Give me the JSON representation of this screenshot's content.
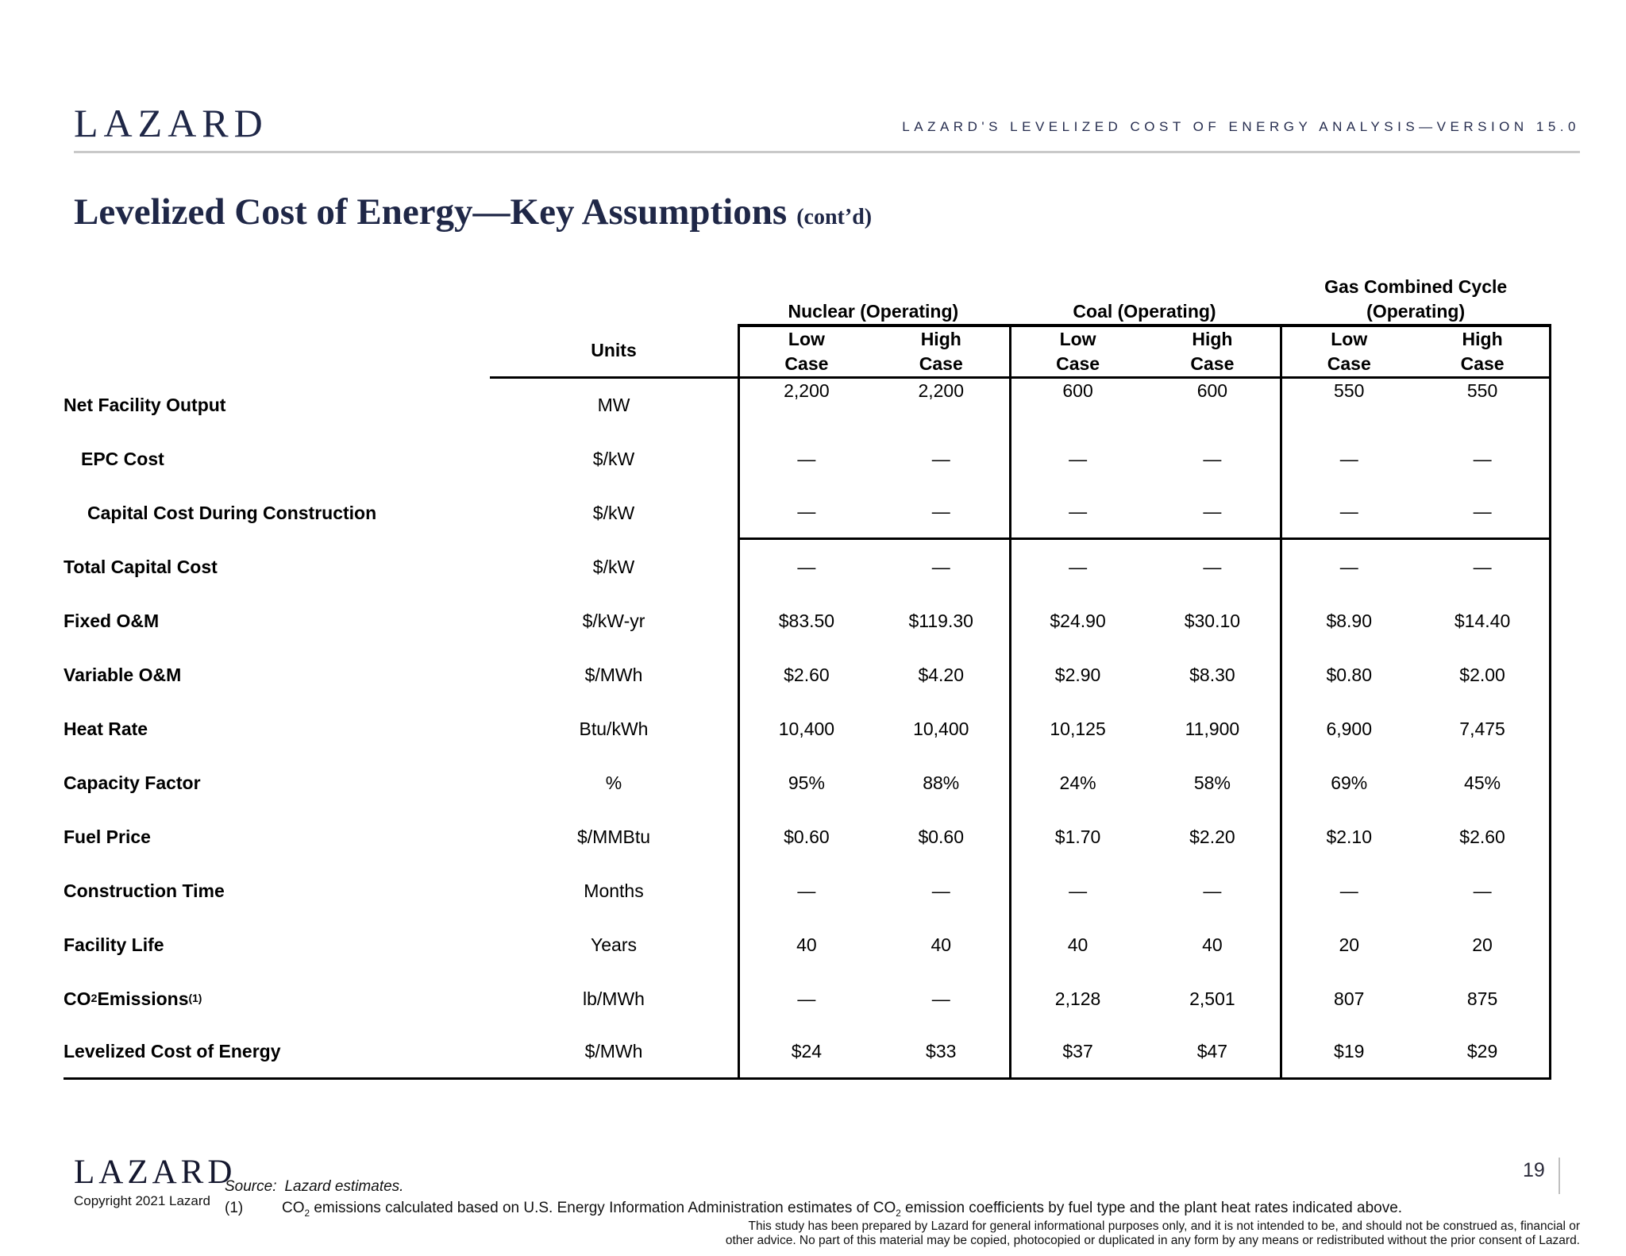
{
  "header": {
    "logo": "LAZARD",
    "right_title": "LAZARD'S LEVELIZED COST OF ENERGY ANALYSIS—VERSION 15.0"
  },
  "title": {
    "main": "Levelized Cost of Energy—Key Assumptions",
    "suffix": "(cont’d)"
  },
  "table": {
    "units_header": "Units",
    "groups": [
      {
        "label": "Nuclear (Operating)"
      },
      {
        "label": "Coal (Operating)"
      },
      {
        "label": "Gas Combined Cycle\n(Operating)"
      }
    ],
    "case_low": "Low\nCase",
    "case_high": "High\nCase",
    "rows": [
      {
        "label": "Net Facility Output",
        "indent": 0,
        "units": "MW",
        "values": [
          "2,200",
          "2,200",
          "600",
          "600",
          "550",
          "550"
        ]
      },
      {
        "label": "EPC Cost",
        "indent": 1,
        "units": "$/kW",
        "values": [
          "—",
          "—",
          "—",
          "—",
          "—",
          "—"
        ]
      },
      {
        "label": "Capital Cost During Construction",
        "indent": 2,
        "units": "$/kW",
        "values": [
          "—",
          "—",
          "—",
          "—",
          "—",
          "—"
        ]
      },
      {
        "label": "Total Capital Cost",
        "indent": 0,
        "units": "$/kW",
        "values": [
          "—",
          "—",
          "—",
          "—",
          "—",
          "—"
        ]
      },
      {
        "label": "Fixed O&M",
        "indent": 0,
        "units": "$/kW-yr",
        "values": [
          "$83.50",
          "$119.30",
          "$24.90",
          "$30.10",
          "$8.90",
          "$14.40"
        ]
      },
      {
        "label": "Variable O&M",
        "indent": 0,
        "units": "$/MWh",
        "values": [
          "$2.60",
          "$4.20",
          "$2.90",
          "$8.30",
          "$0.80",
          "$2.00"
        ]
      },
      {
        "label": "Heat Rate",
        "indent": 0,
        "units": "Btu/kWh",
        "values": [
          "10,400",
          "10,400",
          "10,125",
          "11,900",
          "6,900",
          "7,475"
        ]
      },
      {
        "label": "Capacity Factor",
        "indent": 0,
        "units": "%",
        "values": [
          "95%",
          "88%",
          "24%",
          "58%",
          "69%",
          "45%"
        ]
      },
      {
        "label": "Fuel Price",
        "indent": 0,
        "units": "$/MMBtu",
        "values": [
          "$0.60",
          "$0.60",
          "$1.70",
          "$2.20",
          "$2.10",
          "$2.60"
        ]
      },
      {
        "label": "Construction Time",
        "indent": 0,
        "units": "Months",
        "values": [
          "—",
          "—",
          "—",
          "—",
          "—",
          "—"
        ]
      },
      {
        "label": "Facility Life",
        "indent": 0,
        "units": "Years",
        "values": [
          "40",
          "40",
          "40",
          "40",
          "20",
          "20"
        ]
      },
      {
        "label": "CO",
        "label_sub": "2",
        "label_rest": " Emissions",
        "label_sup": "(1)",
        "indent": 0,
        "units": "lb/MWh",
        "values": [
          "—",
          "—",
          "2,128",
          "2,501",
          "807",
          "875"
        ]
      },
      {
        "label": "Levelized Cost of Energy",
        "indent": 0,
        "units": "$/MWh",
        "values": [
          "$24",
          "$33",
          "$37",
          "$47",
          "$19",
          "$29"
        ]
      }
    ]
  },
  "footer": {
    "logo": "LAZARD",
    "copyright": "Copyright 2021 Lazard",
    "source_label": "Source:",
    "source_text": "Lazard estimates.",
    "footnote_marker": "(1)",
    "footnote_parts": [
      {
        "t": "CO"
      },
      {
        "sub": "2"
      },
      {
        "t": " emissions calculated based on U.S. Energy Information Administration estimates of CO"
      },
      {
        "sub": "2"
      },
      {
        "t": " emission coefficients by fuel type and the plant heat rates indicated above."
      }
    ],
    "page_number": "19",
    "disclaimer_line1": "This study has been prepared by Lazard for general informational purposes only, and it is not intended to be, and should not be construed as, financial or",
    "disclaimer_line2": "other advice. No part of this material may be copied, photocopied or duplicated in any form by any means or redistributed without the prior consent of Lazard."
  }
}
